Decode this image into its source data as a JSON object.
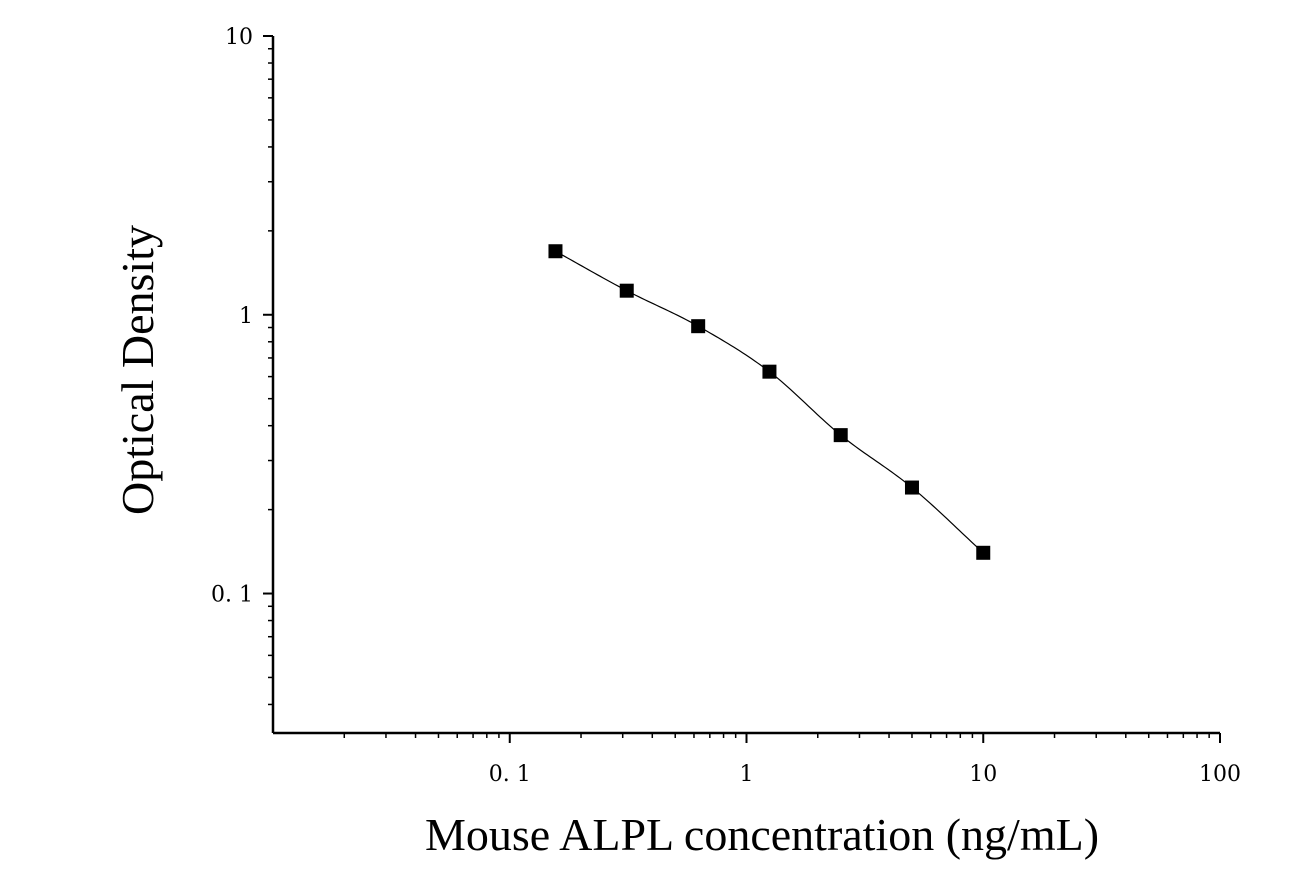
{
  "chart_data": {
    "type": "scatter",
    "title": "",
    "xlabel": "Mouse ALPL concentration (ng/mL)",
    "ylabel": "Optical Density",
    "x_scale": "log",
    "y_scale": "log",
    "xlim": [
      0.01,
      100
    ],
    "ylim": [
      0.0316,
      10
    ],
    "x_ticks": [
      {
        "value": 0.1,
        "label": "0. 1"
      },
      {
        "value": 1,
        "label": "1"
      },
      {
        "value": 10,
        "label": "10"
      },
      {
        "value": 100,
        "label": "100"
      }
    ],
    "y_ticks": [
      {
        "value": 0.1,
        "label": "0. 1"
      },
      {
        "value": 1,
        "label": "1"
      },
      {
        "value": 10,
        "label": "10"
      }
    ],
    "grid": false,
    "series": [
      {
        "marker": "square",
        "fit_line": true,
        "x": [
          0.156,
          0.312,
          0.625,
          1.25,
          2.5,
          5,
          10
        ],
        "y": [
          1.69,
          1.22,
          0.91,
          0.625,
          0.37,
          0.24,
          0.14
        ]
      }
    ],
    "colors": {
      "marker": "#000000",
      "line": "#000000",
      "axes": "#000000"
    }
  }
}
